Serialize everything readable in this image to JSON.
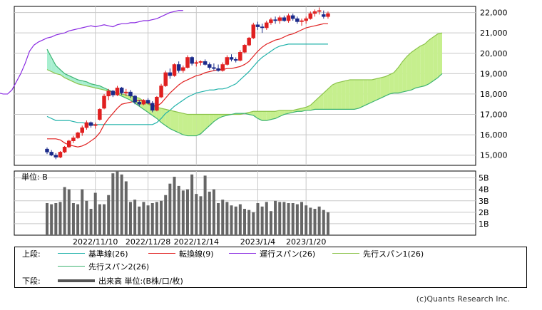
{
  "chart_data": [
    {
      "type": "candlestick",
      "title": "",
      "ylim": [
        14500,
        22300
      ],
      "yticks": [
        "22,000",
        "21,000",
        "20,000",
        "19,000",
        "18,000",
        "17,000",
        "16,000",
        "15,000"
      ],
      "ytick_values": [
        22000,
        21000,
        20000,
        19000,
        18000,
        17000,
        16000,
        15000
      ],
      "x_tick_labels": [
        "2022/11/10",
        "2022/11/28",
        "2022/12/14",
        "2023/1/4",
        "2023/1/20"
      ],
      "x_tick_index": [
        11,
        23,
        34,
        48,
        59
      ],
      "n_bars": 65,
      "n_total": 91,
      "candles": [
        [
          15300,
          15380,
          15050,
          15150
        ],
        [
          15150,
          15250,
          14950,
          15000
        ],
        [
          15000,
          15100,
          14800,
          14900
        ],
        [
          14900,
          15200,
          14850,
          15150
        ],
        [
          15150,
          15450,
          15100,
          15400
        ],
        [
          15400,
          15750,
          15350,
          15700
        ],
        [
          15700,
          15950,
          15600,
          15850
        ],
        [
          15850,
          16150,
          15800,
          16100
        ],
        [
          16100,
          16450,
          15950,
          16350
        ],
        [
          16350,
          16700,
          16250,
          16600
        ],
        [
          16600,
          16650,
          16350,
          16450
        ],
        [
          16450,
          16600,
          16300,
          16500
        ],
        [
          16750,
          17300,
          16700,
          17250
        ],
        [
          17300,
          18000,
          17250,
          17900
        ],
        [
          17900,
          18250,
          17700,
          18150
        ],
        [
          18150,
          18200,
          17850,
          17950
        ],
        [
          17950,
          18400,
          17900,
          18300
        ],
        [
          18300,
          18350,
          17950,
          18050
        ],
        [
          18050,
          18250,
          17900,
          18100
        ],
        [
          18100,
          18200,
          17800,
          17900
        ],
        [
          17900,
          17950,
          17500,
          17600
        ],
        [
          17600,
          17700,
          17400,
          17500
        ],
        [
          17500,
          17750,
          17450,
          17700
        ],
        [
          17700,
          17800,
          17500,
          17550
        ],
        [
          17550,
          17650,
          17100,
          17200
        ],
        [
          17200,
          17900,
          17150,
          17850
        ],
        [
          17850,
          18500,
          17800,
          18400
        ],
        [
          18400,
          19150,
          18350,
          19050
        ],
        [
          19050,
          19250,
          18750,
          18900
        ],
        [
          18900,
          19500,
          18850,
          19450
        ],
        [
          19450,
          19600,
          19050,
          19150
        ],
        [
          19150,
          19400,
          19050,
          19300
        ],
        [
          19300,
          19900,
          19250,
          19800
        ],
        [
          19800,
          19850,
          19400,
          19500
        ],
        [
          19500,
          19650,
          19350,
          19550
        ],
        [
          19550,
          19650,
          19400,
          19600
        ],
        [
          19600,
          19700,
          19400,
          19450
        ],
        [
          19450,
          19550,
          19200,
          19300
        ],
        [
          19300,
          19500,
          19150,
          19250
        ],
        [
          19250,
          19450,
          19100,
          19150
        ],
        [
          19150,
          19550,
          19100,
          19450
        ],
        [
          19450,
          19900,
          19400,
          19800
        ],
        [
          19800,
          19950,
          19600,
          19700
        ],
        [
          19700,
          19800,
          19550,
          19650
        ],
        [
          19650,
          20150,
          19600,
          20050
        ],
        [
          20050,
          20450,
          20000,
          20400
        ],
        [
          20400,
          20800,
          20350,
          20750
        ],
        [
          20750,
          21500,
          20700,
          21400
        ],
        [
          21400,
          21550,
          21150,
          21300
        ],
        [
          21300,
          21450,
          21000,
          21250
        ],
        [
          21250,
          21600,
          21150,
          21500
        ],
        [
          21500,
          21750,
          21400,
          21650
        ],
        [
          21650,
          21800,
          21450,
          21600
        ],
        [
          21600,
          21850,
          21450,
          21750
        ],
        [
          21750,
          21850,
          21550,
          21600
        ],
        [
          21600,
          21950,
          21500,
          21850
        ],
        [
          21850,
          21950,
          21600,
          21700
        ],
        [
          21700,
          21800,
          21450,
          21550
        ],
        [
          21550,
          21700,
          21350,
          21600
        ],
        [
          21600,
          21800,
          21450,
          21700
        ],
        [
          21700,
          22050,
          21650,
          21950
        ],
        [
          21950,
          22150,
          21800,
          22050
        ],
        [
          22050,
          22250,
          21900,
          22100
        ],
        [
          21900,
          22100,
          21700,
          21800
        ],
        [
          21800,
          22050,
          21700,
          21950
        ]
      ],
      "series": [
        {
          "name": "基準線(26)",
          "color": "#20b2aa",
          "values": [
            16900,
            16800,
            16700,
            16700,
            16700,
            16700,
            16650,
            16600,
            16600,
            16550,
            16500,
            16500,
            16500,
            16500,
            16500,
            16500,
            16500,
            16500,
            16500,
            16500,
            16500,
            16500,
            16500,
            16500,
            16500,
            16600,
            16800,
            17050,
            17200,
            17400,
            17550,
            17700,
            17850,
            17950,
            18050,
            18100,
            18150,
            18200,
            18200,
            18250,
            18250,
            18300,
            18400,
            18500,
            18700,
            18900,
            19100,
            19350,
            19600,
            19800,
            19950,
            20100,
            20250,
            20350,
            20400,
            20450,
            20450,
            20450,
            20450,
            20450,
            20450,
            20450,
            20450,
            20450,
            20450
          ]
        },
        {
          "name": "転換線(9)",
          "color": "#e02020",
          "values": [
            15800,
            15800,
            15800,
            15750,
            15600,
            15500,
            15450,
            15400,
            15450,
            15550,
            15700,
            15850,
            16100,
            16500,
            16800,
            17050,
            17300,
            17500,
            17550,
            17600,
            17650,
            17700,
            17650,
            17550,
            17450,
            17400,
            17550,
            17800,
            18050,
            18250,
            18450,
            18600,
            18700,
            18800,
            18900,
            18950,
            19050,
            19100,
            19150,
            19200,
            19200,
            19250,
            19250,
            19300,
            19350,
            19450,
            19600,
            19850,
            20100,
            20300,
            20450,
            20550,
            20650,
            20700,
            20800,
            20900,
            20950,
            21050,
            21150,
            21250,
            21300,
            21350,
            21400,
            21450,
            21450
          ]
        },
        {
          "name": "遅行スパン(26)",
          "color": "#8a2be2",
          "offset": -25,
          "values": [
            18600,
            18700,
            18650,
            18650,
            18600,
            18550,
            18500,
            18450,
            18400,
            18350,
            18300,
            18250,
            18200,
            18100,
            18050,
            18000,
            18000,
            18200,
            18600,
            19000,
            19500,
            20100,
            20400,
            20550,
            20650,
            20750,
            20800,
            20900,
            20950,
            21000,
            21100,
            21150,
            21200,
            21250,
            21300,
            21350,
            21300,
            21350,
            21400,
            21350,
            21300,
            21400,
            21450,
            21450,
            21500,
            21500,
            21550,
            21600,
            21600,
            21650,
            21700,
            21800,
            21900,
            22000,
            22050,
            22100,
            22100
          ]
        },
        {
          "name": "先行スパン1(26)",
          "color": "#8bc34a",
          "offset": 0,
          "values": [
            19200,
            19100,
            19000,
            18950,
            18800,
            18700,
            18600,
            18500,
            18450,
            18400,
            18350,
            18300,
            18250,
            18200,
            18150,
            18100,
            18050,
            18000,
            17950,
            17900,
            17850,
            17800,
            17650,
            17500,
            17400,
            17350,
            17300,
            17250,
            17200,
            17150,
            17100,
            17050,
            17000,
            17000,
            17000,
            17000,
            17000,
            17000,
            17000,
            17000,
            17000,
            17000,
            17000,
            17000,
            17000,
            17050,
            17100,
            17150,
            17150,
            17150,
            17150,
            17150,
            17150,
            17200,
            17200,
            17200,
            17200,
            17250,
            17300,
            17350,
            17450,
            17650,
            17850,
            18050,
            18250,
            18450,
            18550,
            18600,
            18650,
            18700,
            18700,
            18700,
            18700,
            18700,
            18700,
            18750,
            18800,
            18850,
            18950,
            19050,
            19300,
            19600,
            19850,
            20050,
            20200,
            20350,
            20450,
            20650,
            20800,
            20950,
            21000
          ]
        },
        {
          "name": "先行スパン2(26)",
          "color": "#3cb371",
          "offset": 0,
          "values": [
            20200,
            19800,
            19400,
            19200,
            19000,
            18900,
            18800,
            18700,
            18650,
            18600,
            18500,
            18450,
            18400,
            18300,
            18200,
            18100,
            18000,
            17900,
            17800,
            17700,
            17550,
            17400,
            17250,
            17100,
            16950,
            16800,
            16600,
            16450,
            16300,
            16200,
            16100,
            16000,
            15950,
            15950,
            15950,
            16050,
            16250,
            16450,
            16650,
            16800,
            16900,
            16950,
            17000,
            17050,
            17050,
            17050,
            17000,
            16950,
            16800,
            16700,
            16700,
            16750,
            16800,
            16900,
            17000,
            17050,
            17100,
            17150,
            17150,
            17200,
            17200,
            17250,
            17250,
            17250,
            17250,
            17250,
            17250,
            17250,
            17250,
            17250,
            17250,
            17300,
            17400,
            17500,
            17600,
            17700,
            17800,
            17900,
            18000,
            18050,
            18050,
            18100,
            18150,
            18200,
            18300,
            18350,
            18400,
            18500,
            18650,
            18800,
            19000
          ]
        }
      ]
    },
    {
      "type": "bar",
      "title": "",
      "unit_label": "単位: B",
      "ylim": [
        0,
        5.6
      ],
      "yticks": [
        "5B",
        "4B",
        "3B",
        "2B",
        "1B"
      ],
      "ytick_values": [
        5,
        4,
        3,
        2,
        1
      ],
      "values": [
        2.8,
        2.7,
        2.8,
        2.9,
        4.2,
        4.0,
        2.8,
        2.7,
        4.0,
        3.0,
        2.3,
        3.7,
        2.7,
        2.7,
        3.5,
        5.4,
        5.6,
        5.3,
        4.7,
        2.9,
        3.1,
        2.5,
        2.9,
        2.6,
        2.8,
        2.9,
        3.0,
        3.5,
        4.5,
        5.1,
        4.3,
        3.9,
        4.0,
        5.3,
        3.6,
        3.4,
        5.2,
        3.8,
        4.0,
        2.8,
        3.1,
        2.9,
        2.6,
        2.5,
        2.7,
        2.3,
        2.2,
        2.0,
        2.8,
        2.5,
        2.9,
        2.1,
        3.0,
        2.9,
        2.9,
        2.8,
        2.8,
        2.7,
        2.9,
        2.6,
        2.4,
        2.3,
        2.5,
        2.2,
        2.0
      ]
    }
  ],
  "legend": {
    "upper_label": "上段:",
    "lower_label": "下段:",
    "items_row1": [
      {
        "name": "基準線(26)",
        "color": "#20b2aa"
      },
      {
        "name": "転換線(9)",
        "color": "#e02020"
      },
      {
        "name": "遅行スパン(26)",
        "color": "#8a2be2"
      },
      {
        "name": "先行スパン1(26)",
        "color": "#8bc34a"
      }
    ],
    "items_row2": [
      {
        "name": "先行スパン2(26)",
        "color": "#3cb371"
      }
    ],
    "lower_item": "出来高 単位:(B株/口/枚)"
  },
  "copyright": "(c)Quants Research Inc."
}
